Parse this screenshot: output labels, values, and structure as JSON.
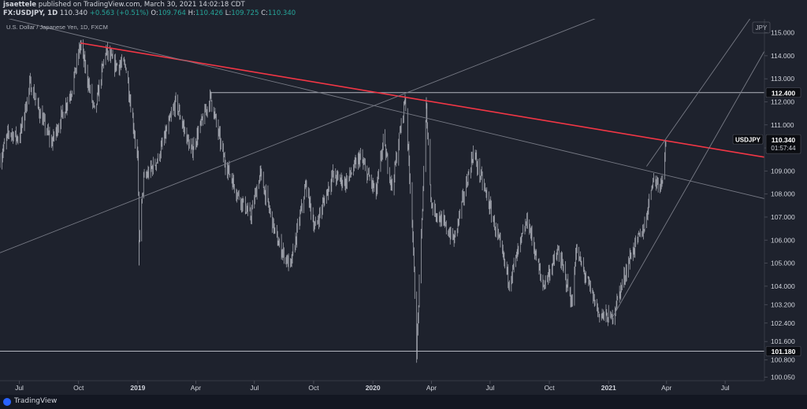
{
  "header": {
    "author": "jsaettele",
    "published_text": "published on TradingView.com, March 30, 2021 14:02:18 CDT",
    "ticker": "FX:USDJPY, 1D",
    "last": "110.340",
    "change": "+0.563 (+0.51%)",
    "ohlc": {
      "o": "109.764",
      "h": "110.426",
      "l": "109.725",
      "c": "110.340"
    },
    "ohlc_labels": {
      "o": "O:",
      "h": "H:",
      "l": "L:",
      "c": "C:"
    }
  },
  "chart_title": "U.S. Dollar / Japanese Yen, 1D, FXCM",
  "currency_label": "JPY",
  "chart_data": {
    "type": "line",
    "title": "U.S. Dollar / Japanese Yen, 1D, FXCM",
    "symbol": "USDJPY",
    "y_unit": "JPY",
    "ylim": [
      99.9,
      115.6
    ],
    "x_range": [
      "2018-06-01",
      "2021-08-31"
    ],
    "price_ticks": [
      "100.050",
      "100.800",
      "101.600",
      "102.400",
      "103.200",
      "104.000",
      "105.000",
      "106.000",
      "107.000",
      "108.000",
      "109.000",
      "110.000",
      "111.000",
      "112.000",
      "113.000",
      "114.000",
      "115.000"
    ],
    "time_ticks": [
      {
        "label": "Jul",
        "date": "2018-07-01"
      },
      {
        "label": "Oct",
        "date": "2018-10-01"
      },
      {
        "label": "2019",
        "date": "2019-01-01"
      },
      {
        "label": "Apr",
        "date": "2019-04-01"
      },
      {
        "label": "Jul",
        "date": "2019-07-01"
      },
      {
        "label": "Oct",
        "date": "2019-10-01"
      },
      {
        "label": "2020",
        "date": "2020-01-01"
      },
      {
        "label": "Apr",
        "date": "2020-04-01"
      },
      {
        "label": "Jul",
        "date": "2020-07-01"
      },
      {
        "label": "Oct",
        "date": "2020-10-01"
      },
      {
        "label": "2021",
        "date": "2021-01-01"
      },
      {
        "label": "Apr",
        "date": "2021-04-01"
      },
      {
        "label": "Jul",
        "date": "2021-07-01"
      }
    ],
    "price_path": [
      [
        "2018-06-01",
        109.5
      ],
      [
        "2018-06-15",
        110.7
      ],
      [
        "2018-07-01",
        110.4
      ],
      [
        "2018-07-18",
        112.8
      ],
      [
        "2018-08-01",
        111.6
      ],
      [
        "2018-08-20",
        110.2
      ],
      [
        "2018-09-05",
        111.4
      ],
      [
        "2018-09-20",
        112.5
      ],
      [
        "2018-10-04",
        114.5
      ],
      [
        "2018-10-26",
        111.5
      ],
      [
        "2018-11-12",
        114.2
      ],
      [
        "2018-11-26",
        113.6
      ],
      [
        "2018-12-13",
        113.6
      ],
      [
        "2019-01-01",
        109.5
      ],
      [
        "2019-01-03",
        106.0
      ],
      [
        "2019-01-10",
        108.6
      ],
      [
        "2019-02-01",
        109.5
      ],
      [
        "2019-03-01",
        112.0
      ],
      [
        "2019-03-25",
        109.8
      ],
      [
        "2019-04-24",
        112.2
      ],
      [
        "2019-05-15",
        109.5
      ],
      [
        "2019-06-05",
        108.0
      ],
      [
        "2019-06-25",
        107.0
      ],
      [
        "2019-07-10",
        108.9
      ],
      [
        "2019-08-05",
        106.0
      ],
      [
        "2019-08-26",
        104.8
      ],
      [
        "2019-09-19",
        108.4
      ],
      [
        "2019-10-03",
        106.5
      ],
      [
        "2019-10-30",
        108.8
      ],
      [
        "2019-11-20",
        108.5
      ],
      [
        "2019-12-12",
        109.6
      ],
      [
        "2020-01-06",
        108.0
      ],
      [
        "2020-01-17",
        110.3
      ],
      [
        "2020-01-31",
        108.3
      ],
      [
        "2020-02-20",
        112.2
      ],
      [
        "2020-03-02",
        107.0
      ],
      [
        "2020-03-09",
        101.2
      ],
      [
        "2020-03-24",
        111.7
      ],
      [
        "2020-04-01",
        107.5
      ],
      [
        "2020-05-06",
        106.0
      ],
      [
        "2020-06-05",
        109.8
      ],
      [
        "2020-06-30",
        107.5
      ],
      [
        "2020-07-31",
        104.2
      ],
      [
        "2020-08-28",
        106.9
      ],
      [
        "2020-09-21",
        104.0
      ],
      [
        "2020-10-15",
        105.5
      ],
      [
        "2020-11-06",
        103.2
      ],
      [
        "2020-11-11",
        105.6
      ],
      [
        "2020-12-17",
        102.8
      ],
      [
        "2021-01-06",
        102.6
      ],
      [
        "2021-02-05",
        105.4
      ],
      [
        "2021-02-26",
        106.6
      ],
      [
        "2021-03-10",
        108.6
      ],
      [
        "2021-03-24",
        108.5
      ],
      [
        "2021-03-31",
        110.34
      ]
    ],
    "extremes": [
      {
        "date": "2019-01-03",
        "low": 104.9
      },
      {
        "date": "2020-03-09",
        "low": 101.18
      },
      {
        "date": "2020-03-24",
        "high": 112.2
      }
    ],
    "horizontal_levels": [
      {
        "price": 112.4,
        "label": "112.400",
        "from": "2019-04-24",
        "color": "#b2b5be"
      },
      {
        "price": 101.18,
        "label": "101.180",
        "from": "2018-06-01",
        "color": "#b2b5be"
      }
    ],
    "trend_lines": [
      {
        "from": [
          "2018-10-04",
          114.55
        ],
        "to": [
          "2021-08-31",
          109.6
        ],
        "color": "#f23645",
        "width": 1.6
      },
      {
        "from": [
          "2018-06-01",
          115.7
        ],
        "to": [
          "2021-08-31",
          107.8
        ],
        "color": "#787b86",
        "width": 0.9
      },
      {
        "from": [
          "2018-06-01",
          105.45
        ],
        "to": [
          "2021-08-31",
          118.5
        ],
        "color": "#787b86",
        "width": 0.9
      },
      {
        "from": [
          "2021-01-06",
          102.6
        ],
        "to": [
          "2021-08-31",
          114.2
        ],
        "color": "#787b86",
        "width": 0.9
      },
      {
        "from": [
          "2021-03-01",
          109.2
        ],
        "to": [
          "2021-08-31",
          116.5
        ],
        "color": "#787b86",
        "width": 0.9
      }
    ],
    "last_price": {
      "symbol": "USDJPY",
      "price": 110.34,
      "label": "110.340",
      "countdown": "01:57:44"
    },
    "grid": false
  },
  "footer": {
    "brand": "TradingView"
  },
  "colors": {
    "bg": "#1e222d",
    "candle": "#b2b5be",
    "axis_text": "#d1d4dc",
    "red_line": "#f23645",
    "gray_line": "#787b86"
  }
}
